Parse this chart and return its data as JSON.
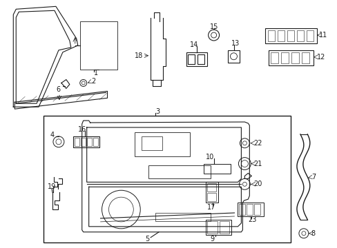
{
  "background_color": "#ffffff",
  "line_color": "#1a1a1a",
  "figsize": [
    4.89,
    3.6
  ],
  "dpi": 100,
  "fs": 7
}
